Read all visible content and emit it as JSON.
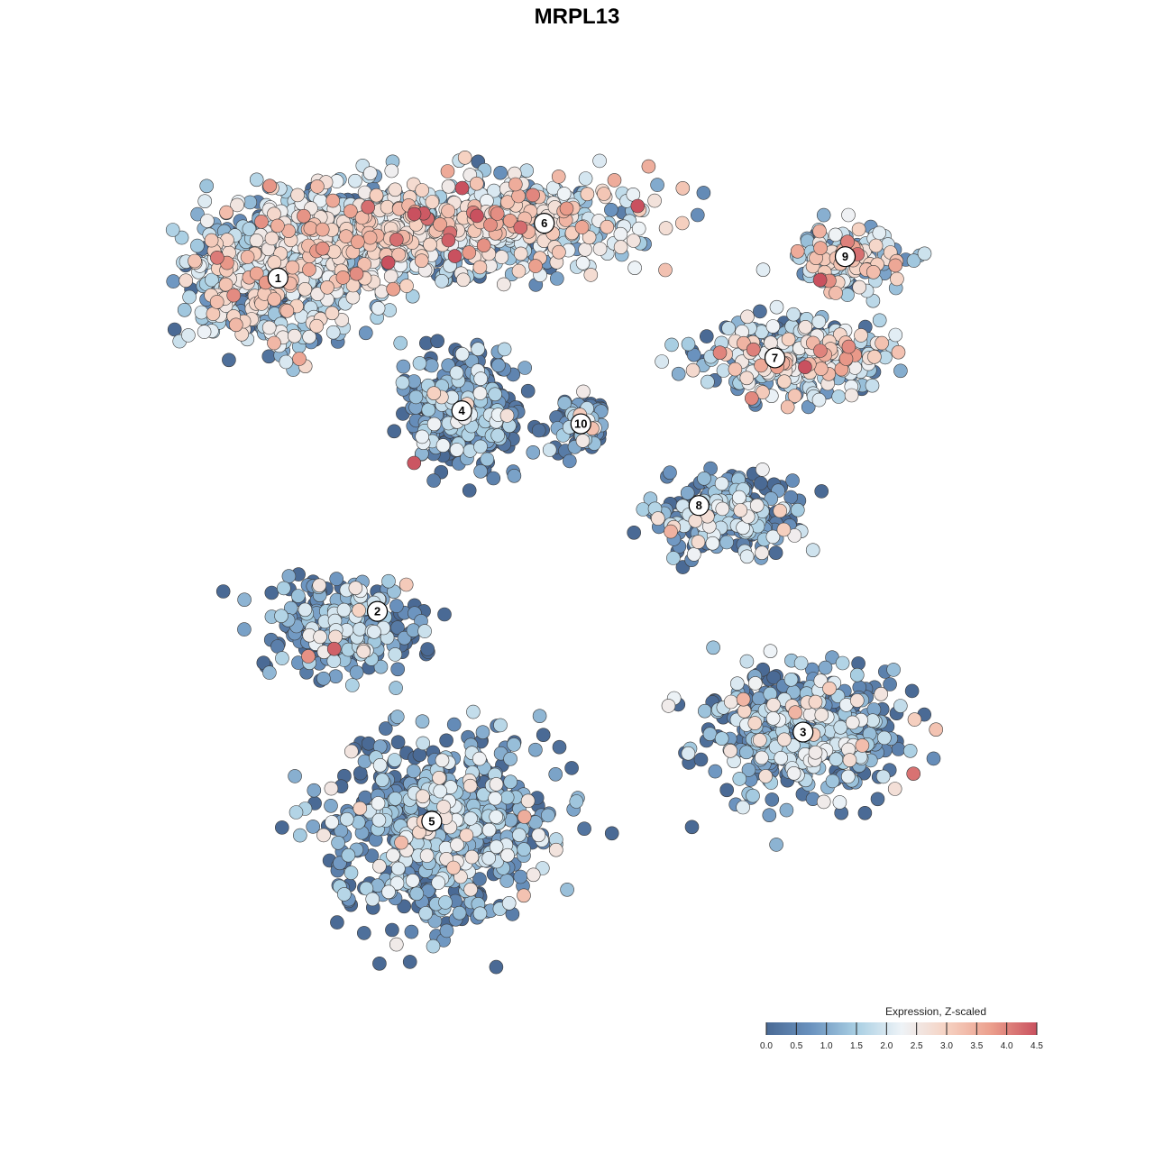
{
  "chart_data": {
    "type": "scatter",
    "title": "MRPL13",
    "xlabel": "",
    "ylabel": "",
    "grid": false,
    "legend": {
      "title": "Expression, Z-scaled",
      "placement": "bottom-right",
      "range": [
        0,
        4.5
      ],
      "ticks": [
        "0.0",
        "0.5",
        "1.0",
        "1.5",
        "2.0",
        "2.5",
        "3.0",
        "3.5",
        "4.0",
        "4.5"
      ],
      "colors": [
        "#4a6a95",
        "#6b93bf",
        "#a9cfe3",
        "#eef3f7",
        "#f6d2c2",
        "#eb9e8c",
        "#c9515f"
      ]
    },
    "xlim": [
      0,
      100
    ],
    "ylim": [
      0,
      100
    ],
    "clusters": [
      {
        "label": "1",
        "x": 13.3,
        "y": 78.8,
        "expression_mean": 1.9
      },
      {
        "label": "2",
        "x": 23.9,
        "y": 42.9,
        "expression_mean": 0.9
      },
      {
        "label": "3",
        "x": 69.3,
        "y": 29.9,
        "expression_mean": 1.2
      },
      {
        "label": "4",
        "x": 32.9,
        "y": 64.5,
        "expression_mean": 0.6
      },
      {
        "label": "5",
        "x": 29.7,
        "y": 20.3,
        "expression_mean": 1.0
      },
      {
        "label": "6",
        "x": 41.7,
        "y": 84.7,
        "expression_mean": 2.2
      },
      {
        "label": "7",
        "x": 66.3,
        "y": 70.2,
        "expression_mean": 2.0
      },
      {
        "label": "8",
        "x": 58.2,
        "y": 54.3,
        "expression_mean": 0.9
      },
      {
        "label": "9",
        "x": 73.8,
        "y": 81.1,
        "expression_mean": 2.3
      },
      {
        "label": "10",
        "x": 45.6,
        "y": 63.1,
        "expression_mean": 1.0
      }
    ]
  }
}
